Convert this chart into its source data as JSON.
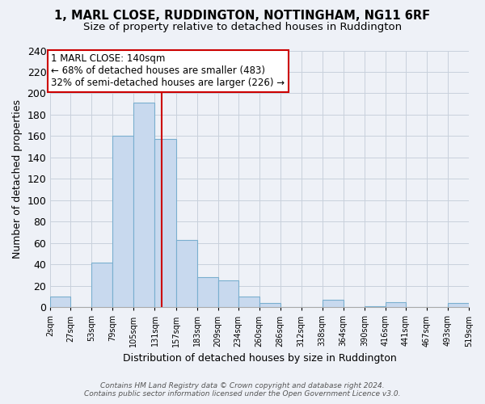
{
  "title": "1, MARL CLOSE, RUDDINGTON, NOTTINGHAM, NG11 6RF",
  "subtitle": "Size of property relative to detached houses in Ruddington",
  "xlabel": "Distribution of detached houses by size in Ruddington",
  "ylabel": "Number of detached properties",
  "bar_color": "#c8d9ee",
  "bar_edge_color": "#7aafcf",
  "bin_edges": [
    2,
    27,
    53,
    79,
    105,
    131,
    157,
    183,
    209,
    234,
    260,
    286,
    312,
    338,
    364,
    390,
    416,
    441,
    467,
    493,
    519
  ],
  "bar_heights": [
    10,
    0,
    42,
    160,
    191,
    157,
    63,
    28,
    25,
    10,
    4,
    0,
    0,
    7,
    0,
    1,
    5,
    0,
    0,
    4
  ],
  "tick_labels": [
    "2sqm",
    "27sqm",
    "53sqm",
    "79sqm",
    "105sqm",
    "131sqm",
    "157sqm",
    "183sqm",
    "209sqm",
    "234sqm",
    "260sqm",
    "286sqm",
    "312sqm",
    "338sqm",
    "364sqm",
    "390sqm",
    "416sqm",
    "441sqm",
    "467sqm",
    "493sqm",
    "519sqm"
  ],
  "property_size": 140,
  "property_line_color": "#cc0000",
  "annotation_text_line1": "1 MARL CLOSE: 140sqm",
  "annotation_text_line2": "← 68% of detached houses are smaller (483)",
  "annotation_text_line3": "32% of semi-detached houses are larger (226) →",
  "annotation_box_color": "#ffffff",
  "annotation_box_edge_color": "#cc0000",
  "ylim": [
    0,
    240
  ],
  "yticks": [
    0,
    20,
    40,
    60,
    80,
    100,
    120,
    140,
    160,
    180,
    200,
    220,
    240
  ],
  "grid_color": "#c8d0dc",
  "footer_line1": "Contains HM Land Registry data © Crown copyright and database right 2024.",
  "footer_line2": "Contains public sector information licensed under the Open Government Licence v3.0.",
  "background_color": "#eef1f7",
  "title_fontsize": 10.5,
  "subtitle_fontsize": 9.5
}
